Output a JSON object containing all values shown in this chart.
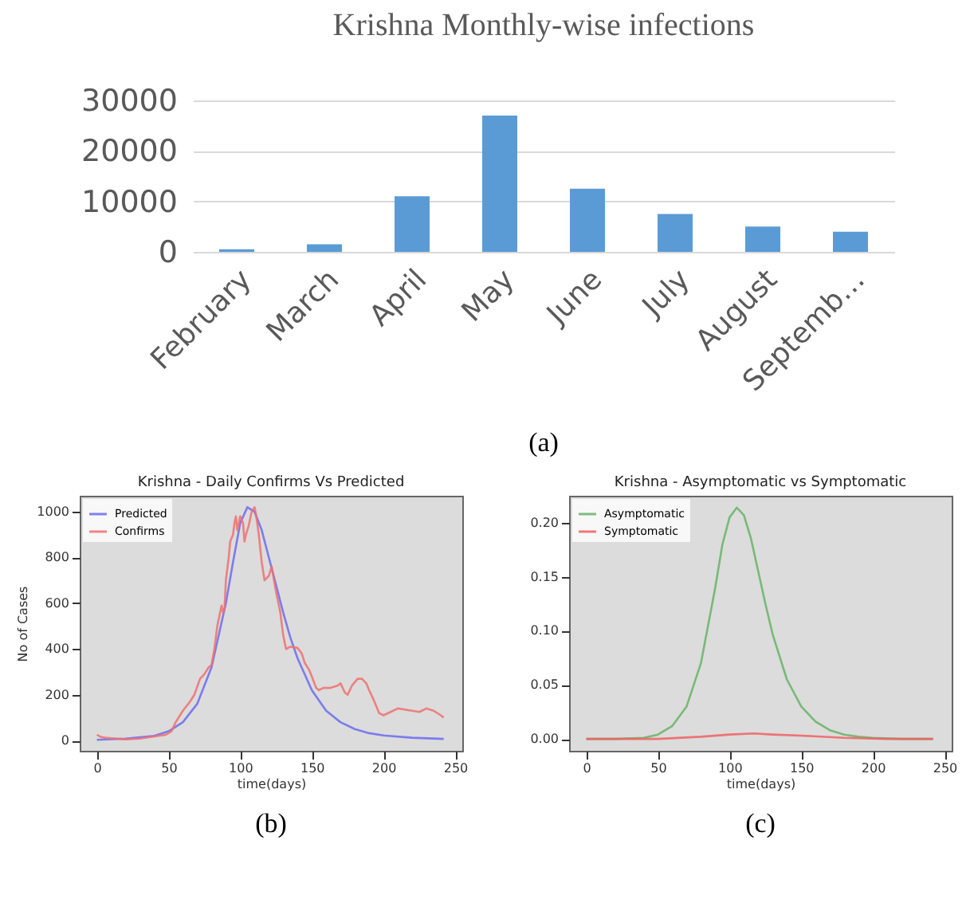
{
  "chart_data": [
    {
      "type": "bar",
      "title": "Krishna Monthly-wise infections",
      "categories": [
        "February",
        "March",
        "April",
        "May",
        "June",
        "July",
        "August",
        "Septemb…"
      ],
      "values": [
        500,
        1500,
        11000,
        27000,
        12500,
        7500,
        5000,
        4000
      ],
      "color": "#5b9bd5",
      "ylim": [
        0,
        30000
      ],
      "yticks": [
        0,
        10000,
        20000,
        30000
      ],
      "grid": true,
      "annotations": [
        "(a)"
      ]
    },
    {
      "type": "line",
      "title": "Krishna - Daily Confirms Vs Predicted",
      "xlabel": "time(days)",
      "ylabel": "No of Cases",
      "legend": "top left",
      "xlim": [
        -12,
        255
      ],
      "ylim": [
        -45,
        1070
      ],
      "xticks": [
        0,
        50,
        100,
        150,
        200,
        250
      ],
      "yticks": [
        0,
        200,
        400,
        600,
        800,
        1000
      ],
      "annotations": [
        "(b)"
      ],
      "series": [
        {
          "name": "Predicted",
          "color": "#6b6bf0",
          "x": [
            0,
            20,
            40,
            50,
            60,
            70,
            80,
            90,
            95,
            100,
            105,
            110,
            115,
            120,
            125,
            130,
            135,
            140,
            150,
            160,
            170,
            180,
            190,
            200,
            220,
            242
          ],
          "values": [
            3,
            8,
            20,
            40,
            80,
            160,
            320,
            600,
            780,
            950,
            1020,
            1000,
            920,
            800,
            680,
            560,
            450,
            360,
            220,
            130,
            80,
            50,
            32,
            22,
            12,
            7
          ]
        },
        {
          "name": "Confirms",
          "color": "#f07070",
          "x": [
            0,
            3,
            6,
            10,
            20,
            30,
            40,
            48,
            52,
            55,
            60,
            65,
            68,
            72,
            75,
            78,
            80,
            82,
            84,
            86,
            87,
            88,
            89,
            90,
            92,
            93,
            95,
            96,
            97,
            98,
            100,
            102,
            103,
            104,
            106,
            108,
            110,
            111,
            113,
            115,
            117,
            120,
            122,
            125,
            128,
            130,
            132,
            135,
            140,
            143,
            145,
            148,
            150,
            153,
            155,
            158,
            163,
            168,
            170,
            173,
            175,
            178,
            182,
            185,
            188,
            190,
            193,
            197,
            200,
            205,
            210,
            215,
            220,
            225,
            230,
            235,
            240,
            242
          ],
          "values": [
            25,
            15,
            12,
            10,
            5,
            8,
            18,
            25,
            40,
            80,
            130,
            170,
            200,
            270,
            290,
            320,
            330,
            400,
            500,
            560,
            590,
            560,
            570,
            700,
            800,
            870,
            900,
            950,
            980,
            920,
            980,
            950,
            870,
            900,
            940,
            1000,
            1020,
            990,
            900,
            780,
            700,
            720,
            760,
            650,
            560,
            460,
            400,
            410,
            405,
            380,
            340,
            310,
            280,
            230,
            220,
            230,
            230,
            240,
            250,
            210,
            200,
            240,
            270,
            270,
            250,
            220,
            180,
            120,
            110,
            125,
            140,
            135,
            130,
            125,
            140,
            130,
            110,
            100
          ]
        }
      ]
    },
    {
      "type": "line",
      "title": "Krishna - Asymptomatic vs Symptomatic",
      "xlabel": "time(days)",
      "legend": "top left",
      "xlim": [
        -12,
        255
      ],
      "ylim": [
        -0.011,
        0.225
      ],
      "xticks": [
        0,
        50,
        100,
        150,
        200,
        250
      ],
      "yticks": [
        {
          "value": 0,
          "label": "0.00"
        },
        {
          "value": 0.05,
          "label": "0.05"
        },
        {
          "value": 0.1,
          "label": "0.10"
        },
        {
          "value": 0.15,
          "label": "0.15"
        },
        {
          "value": 0.2,
          "label": "0.20"
        }
      ],
      "annotations": [
        "(c)"
      ],
      "series": [
        {
          "name": "Asymptomatic",
          "color": "#66b366",
          "x": [
            0,
            20,
            40,
            50,
            60,
            70,
            80,
            90,
            95,
            100,
            105,
            110,
            115,
            120,
            125,
            130,
            140,
            150,
            160,
            170,
            180,
            190,
            200,
            220,
            242
          ],
          "values": [
            0,
            0,
            0.001,
            0.004,
            0.012,
            0.03,
            0.07,
            0.14,
            0.18,
            0.205,
            0.214,
            0.207,
            0.185,
            0.155,
            0.125,
            0.097,
            0.055,
            0.03,
            0.016,
            0.008,
            0.004,
            0.002,
            0.001,
            0,
            0
          ]
        },
        {
          "name": "Symptomatic",
          "color": "#f06060",
          "x": [
            0,
            50,
            80,
            100,
            117,
            130,
            150,
            180,
            210,
            242
          ],
          "values": [
            0,
            0,
            0.002,
            0.004,
            0.005,
            0.004,
            0.003,
            0.001,
            0,
            0
          ]
        }
      ]
    }
  ]
}
